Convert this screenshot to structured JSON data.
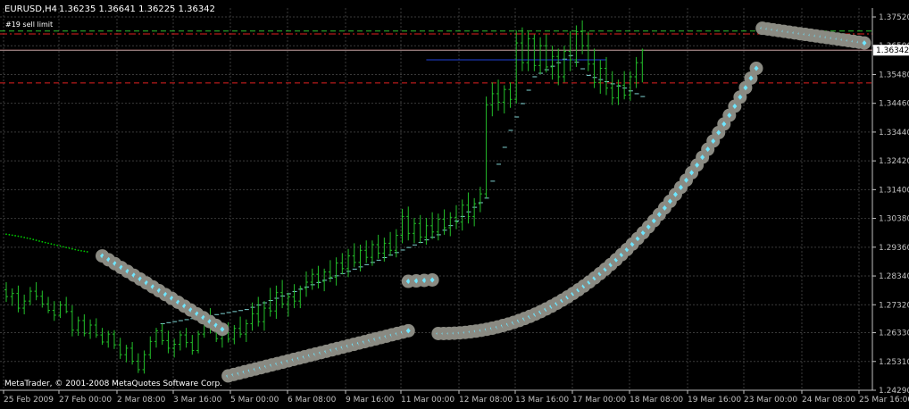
{
  "header": {
    "symbol": "EURUSD,H4",
    "quote": "1.36235 1.36641 1.36225 1.36342",
    "order_label": "#19 sell limit"
  },
  "footer": {
    "copyright": "MetaTrader, © 2001-2008 MetaQuotes Software Corp."
  },
  "colors": {
    "background": "#000000",
    "grid": "#3a3a3a",
    "axis": "#c0c0c0",
    "candle": "#23c02a",
    "ma_line": "#7fd3d3",
    "dotted_ma": "#00c800",
    "blue_line": "#1f3fd8",
    "red_line": "#e02020",
    "green_line": "#30c030",
    "marker_halo": "#8a8a82",
    "marker_dot": "#6fe6ff",
    "price_label_bg": "#ffffff",
    "price_label_text": "#000000"
  },
  "chart_data": {
    "type": "candlestick",
    "title": "",
    "symbol": "EURUSD",
    "timeframe": "H4",
    "current_price": "1.36342",
    "ylim": [
      1.2429,
      1.3802
    ],
    "y_ticks": [
      "1.37520",
      "1.36500",
      "1.35480",
      "1.34460",
      "1.33440",
      "1.32420",
      "1.31400",
      "1.30380",
      "1.29360",
      "1.28340",
      "1.27320",
      "1.26330",
      "1.25310",
      "1.24290"
    ],
    "x_ticks": [
      "25 Feb 2009",
      "27 Feb 00:00",
      "2 Mar 08:00",
      "3 Mar 16:00",
      "5 Mar 00:00",
      "6 Mar 08:00",
      "9 Mar 16:00",
      "11 Mar 00:00",
      "12 Mar 08:00",
      "13 Mar 16:00",
      "17 Mar 00:00",
      "18 Mar 08:00",
      "19 Mar 16:00",
      "23 Mar 00:00",
      "24 Mar 08:00",
      "25 Mar 16:00"
    ],
    "grid": true,
    "horizontal_levels": [
      {
        "price": 1.3702,
        "color": "#30c030",
        "style": "dash"
      },
      {
        "price": 1.3692,
        "color": "#e02020",
        "style": "dashdot"
      },
      {
        "price": 1.3634,
        "color": "#e02020",
        "style": "solid"
      },
      {
        "price": 1.3518,
        "color": "#e02020",
        "style": "dash"
      }
    ],
    "candles": [
      [
        1.2785,
        1.2812,
        1.2742,
        1.2761
      ],
      [
        1.2761,
        1.279,
        1.2728,
        1.2772
      ],
      [
        1.2772,
        1.28,
        1.2705,
        1.272
      ],
      [
        1.272,
        1.2768,
        1.2698,
        1.2745
      ],
      [
        1.2745,
        1.2795,
        1.273,
        1.278
      ],
      [
        1.278,
        1.2812,
        1.2748,
        1.2762
      ],
      [
        1.2762,
        1.2782,
        1.2722,
        1.2735
      ],
      [
        1.2735,
        1.276,
        1.2702,
        1.2712
      ],
      [
        1.2712,
        1.2745,
        1.2675,
        1.2695
      ],
      [
        1.2695,
        1.2745,
        1.2685,
        1.2731
      ],
      [
        1.2731,
        1.276,
        1.2702,
        1.2708
      ],
      [
        1.2708,
        1.273,
        1.262,
        1.2642
      ],
      [
        1.2642,
        1.269,
        1.2622,
        1.2676
      ],
      [
        1.2676,
        1.2698,
        1.262,
        1.2631
      ],
      [
        1.2631,
        1.268,
        1.2611,
        1.266
      ],
      [
        1.266,
        1.2684,
        1.2615,
        1.2625
      ],
      [
        1.2625,
        1.265,
        1.259,
        1.26
      ],
      [
        1.26,
        1.264,
        1.258,
        1.2628
      ],
      [
        1.2628,
        1.2642,
        1.2575,
        1.259
      ],
      [
        1.259,
        1.2615,
        1.254,
        1.2555
      ],
      [
        1.2555,
        1.259,
        1.2528,
        1.2578
      ],
      [
        1.2578,
        1.26,
        1.252,
        1.2532
      ],
      [
        1.2532,
        1.256,
        1.249,
        1.2502
      ],
      [
        1.2502,
        1.257,
        1.2488,
        1.2555
      ],
      [
        1.2555,
        1.262,
        1.254,
        1.2602
      ],
      [
        1.2602,
        1.265,
        1.258,
        1.264
      ],
      [
        1.264,
        1.2665,
        1.259,
        1.2605
      ],
      [
        1.2605,
        1.264,
        1.256,
        1.2578
      ],
      [
        1.2578,
        1.2612,
        1.2545,
        1.2592
      ],
      [
        1.2592,
        1.264,
        1.257,
        1.2625
      ],
      [
        1.2625,
        1.265,
        1.258,
        1.2598
      ],
      [
        1.2598,
        1.2625,
        1.2555,
        1.257
      ],
      [
        1.257,
        1.264,
        1.256,
        1.2628
      ],
      [
        1.2628,
        1.27,
        1.2615,
        1.2685
      ],
      [
        1.2685,
        1.272,
        1.263,
        1.2645
      ],
      [
        1.2645,
        1.268,
        1.26,
        1.2612
      ],
      [
        1.2612,
        1.265,
        1.258,
        1.2632
      ],
      [
        1.2632,
        1.267,
        1.2598,
        1.261
      ],
      [
        1.261,
        1.266,
        1.2592,
        1.2648
      ],
      [
        1.2648,
        1.269,
        1.2615,
        1.2628
      ],
      [
        1.2628,
        1.268,
        1.26,
        1.2665
      ],
      [
        1.2665,
        1.274,
        1.264,
        1.27
      ],
      [
        1.27,
        1.276,
        1.2655,
        1.2672
      ],
      [
        1.2672,
        1.2745,
        1.264,
        1.272
      ],
      [
        1.272,
        1.2792,
        1.269,
        1.271
      ],
      [
        1.271,
        1.28,
        1.2682,
        1.2775
      ],
      [
        1.2775,
        1.282,
        1.272,
        1.2735
      ],
      [
        1.2735,
        1.2775,
        1.269,
        1.276
      ],
      [
        1.276,
        1.2805,
        1.272,
        1.2745
      ],
      [
        1.2745,
        1.28,
        1.272,
        1.279
      ],
      [
        1.279,
        1.285,
        1.276,
        1.2812
      ],
      [
        1.2812,
        1.286,
        1.2785,
        1.284
      ],
      [
        1.284,
        1.287,
        1.279,
        1.2815
      ],
      [
        1.2815,
        1.286,
        1.278,
        1.2848
      ],
      [
        1.2848,
        1.289,
        1.2812,
        1.283
      ],
      [
        1.283,
        1.29,
        1.28,
        1.288
      ],
      [
        1.288,
        1.2915,
        1.284,
        1.286
      ],
      [
        1.286,
        1.293,
        1.283,
        1.2905
      ],
      [
        1.2905,
        1.295,
        1.2865,
        1.2882
      ],
      [
        1.2882,
        1.2945,
        1.285,
        1.2925
      ],
      [
        1.2925,
        1.296,
        1.288,
        1.29
      ],
      [
        1.29,
        1.296,
        1.287,
        1.2945
      ],
      [
        1.2945,
        1.298,
        1.2895,
        1.2915
      ],
      [
        1.2915,
        1.297,
        1.2885,
        1.295
      ],
      [
        1.295,
        1.299,
        1.2905,
        1.2925
      ],
      [
        1.2925,
        1.3,
        1.29,
        1.2978
      ],
      [
        1.2978,
        1.3072,
        1.295,
        1.3045
      ],
      [
        1.3045,
        1.308,
        1.296,
        1.2985
      ],
      [
        1.2985,
        1.304,
        1.295,
        1.302
      ],
      [
        1.302,
        1.305,
        1.295,
        1.2972
      ],
      [
        1.2972,
        1.304,
        1.2945,
        1.3012
      ],
      [
        1.3012,
        1.306,
        1.2965,
        1.299
      ],
      [
        1.299,
        1.3055,
        1.296,
        1.3035
      ],
      [
        1.3035,
        1.307,
        1.298,
        1.3005
      ],
      [
        1.3005,
        1.306,
        1.2975,
        1.3042
      ],
      [
        1.3042,
        1.3085,
        1.3,
        1.3025
      ],
      [
        1.3025,
        1.3105,
        1.2995,
        1.3085
      ],
      [
        1.3085,
        1.313,
        1.302,
        1.3045
      ],
      [
        1.3045,
        1.311,
        1.301,
        1.309
      ],
      [
        1.309,
        1.315,
        1.306,
        1.3125
      ],
      [
        1.3125,
        1.347,
        1.311,
        1.344
      ],
      [
        1.344,
        1.352,
        1.34,
        1.348
      ],
      [
        1.348,
        1.353,
        1.342,
        1.345
      ],
      [
        1.345,
        1.351,
        1.341,
        1.3495
      ],
      [
        1.3495,
        1.352,
        1.343,
        1.346
      ],
      [
        1.346,
        1.3705,
        1.3445,
        1.366
      ],
      [
        1.366,
        1.3715,
        1.356,
        1.359
      ],
      [
        1.359,
        1.37,
        1.356,
        1.3675
      ],
      [
        1.3675,
        1.369,
        1.356,
        1.358
      ],
      [
        1.358,
        1.368,
        1.355,
        1.365
      ],
      [
        1.365,
        1.369,
        1.3555,
        1.3575
      ],
      [
        1.3575,
        1.365,
        1.353,
        1.3612
      ],
      [
        1.3612,
        1.364,
        1.351,
        1.354
      ],
      [
        1.354,
        1.365,
        1.352,
        1.363
      ],
      [
        1.363,
        1.3702,
        1.356,
        1.36
      ],
      [
        1.36,
        1.3722,
        1.3575,
        1.37
      ],
      [
        1.37,
        1.374,
        1.362,
        1.365
      ],
      [
        1.365,
        1.37,
        1.356,
        1.3585
      ],
      [
        1.3585,
        1.364,
        1.35,
        1.352
      ],
      [
        1.352,
        1.36,
        1.348,
        1.357
      ],
      [
        1.357,
        1.361,
        1.3475,
        1.35
      ],
      [
        1.35,
        1.356,
        1.344,
        1.3465
      ],
      [
        1.3465,
        1.353,
        1.344,
        1.351
      ],
      [
        1.351,
        1.356,
        1.346,
        1.3475
      ],
      [
        1.3475,
        1.356,
        1.3455,
        1.354
      ],
      [
        1.354,
        1.361,
        1.35,
        1.359
      ],
      [
        1.359,
        1.364,
        1.352,
        1.3634
      ]
    ],
    "indicators": [
      {
        "name": "",
        "type": "dotted_line",
        "color": "#00c800",
        "points": [
          [
            0,
            1.2982
          ],
          [
            2,
            1.2975
          ],
          [
            4,
            1.2966
          ],
          [
            6,
            1.2955
          ],
          [
            8,
            1.2945
          ],
          [
            10,
            1.2935
          ],
          [
            12,
            1.2925
          ],
          [
            14,
            1.2918
          ]
        ]
      },
      {
        "name": "",
        "type": "step_line",
        "color": "#7fd3d3",
        "points": [
          [
            26,
            1.2665
          ],
          [
            40,
            1.2715
          ],
          [
            50,
            1.2795
          ],
          [
            62,
            1.289
          ],
          [
            72,
            1.298
          ],
          [
            80,
            1.311
          ],
          [
            84,
            1.335
          ],
          [
            88,
            1.354
          ],
          [
            94,
            1.3615
          ],
          [
            97,
            1.3545
          ],
          [
            103,
            1.35
          ],
          [
            107,
            1.346
          ]
        ]
      },
      {
        "name": "",
        "type": "line",
        "color": "#1f3fd8",
        "points": [
          [
            70,
            1.36
          ],
          [
            100,
            1.36
          ]
        ]
      }
    ],
    "marker_segments": [
      {
        "count": 20,
        "start": [
          16,
          1.2905
        ],
        "end": [
          36,
          1.2645
        ]
      },
      {
        "count": 34,
        "start": [
          37,
          1.248
        ],
        "end": [
          67,
          1.264
        ]
      },
      {
        "count": 4,
        "start": [
          67,
          1.2815
        ],
        "end": [
          71,
          1.282
        ]
      },
      {
        "count": 60,
        "start": [
          72,
          1.263
        ],
        "end": [
          125,
          1.357
        ]
      },
      {
        "count": 20,
        "start": [
          126,
          1.3712
        ],
        "end": [
          143,
          1.366
        ]
      }
    ]
  }
}
